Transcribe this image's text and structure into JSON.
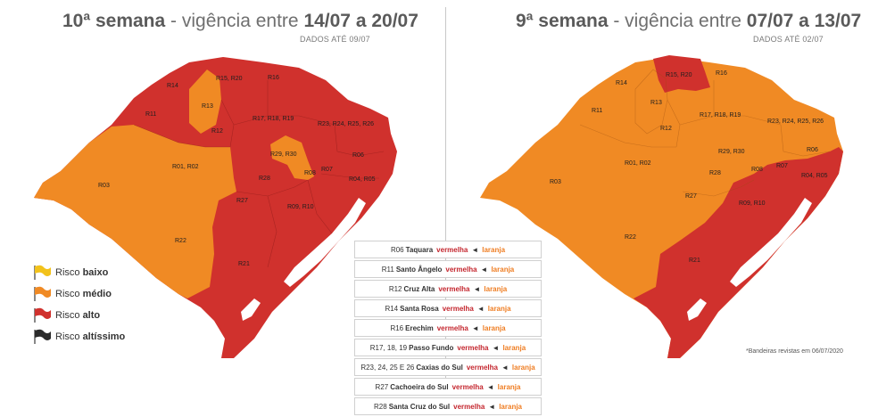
{
  "colors": {
    "baixo": "#f2c21b",
    "medio": "#f08a24",
    "alto": "#d0312d",
    "altissimo": "#2b2b2b"
  },
  "left": {
    "title_bold1": "10ª semana",
    "title_mid": " - vigência entre ",
    "title_bold2": "14/07 a 20/07",
    "dados": "DADOS ATÉ 09/07"
  },
  "right": {
    "title_bold1": "9ª semana",
    "title_mid": " - vigência entre ",
    "title_bold2": "07/07 a 13/07",
    "dados": "DADOS ATÉ 02/07"
  },
  "regions": {
    "r14": "R14",
    "r15": "R15, R20",
    "r16": "R16",
    "r11": "R11",
    "r13": "R13",
    "r17": "R17, R18, R19",
    "r23": "R23, R24, R25, R26",
    "r12": "R12",
    "r29": "R29, R30",
    "r06": "R06",
    "r01": "R01, R02",
    "r08": "R08",
    "r07": "R07",
    "r03": "R03",
    "r28": "R28",
    "r04": "R04, R05",
    "r27": "R27",
    "r09": "R09, R10",
    "r22": "R22",
    "r21": "R21"
  },
  "legend": [
    {
      "prefix": "Risco ",
      "strong": "baixo",
      "color_key": "baixo"
    },
    {
      "prefix": "Risco ",
      "strong": "médio",
      "color_key": "medio"
    },
    {
      "prefix": "Risco ",
      "strong": "alto",
      "color_key": "alto"
    },
    {
      "prefix": "Risco ",
      "strong": "altíssimo",
      "color_key": "altissimo"
    }
  ],
  "changes": [
    {
      "code": "R06",
      "place": "Taquara",
      "from": "vermelha",
      "arrow": "◄",
      "to": "laranja"
    },
    {
      "code": "R11",
      "place": "Santo Ângelo",
      "from": "vermelha",
      "arrow": "◄",
      "to": "laranja"
    },
    {
      "code": "R12",
      "place": "Cruz Alta",
      "from": "vermelha",
      "arrow": "◄",
      "to": "laranja"
    },
    {
      "code": "R14",
      "place": "Santa Rosa",
      "from": "vermelha",
      "arrow": "◄",
      "to": "laranja"
    },
    {
      "code": "R16",
      "place": "Erechim",
      "from": "vermelha",
      "arrow": "◄",
      "to": "laranja"
    },
    {
      "code": "R17, 18, 19",
      "place": "Passo Fundo",
      "from": "vermelha",
      "arrow": "◄",
      "to": "laranja"
    },
    {
      "code": "R23, 24, 25 E 26",
      "place": "Caxias do Sul",
      "from": "vermelha",
      "arrow": "◄",
      "to": "laranja"
    },
    {
      "code": "R27",
      "place": "Cachoeira do Sul",
      "from": "vermelha",
      "arrow": "◄",
      "to": "laranja"
    },
    {
      "code": "R28",
      "place": "Santa Cruz do Sul",
      "from": "vermelha",
      "arrow": "◄",
      "to": "laranja"
    }
  ],
  "note": "*Bandeiras revistas em 06/07/2020"
}
